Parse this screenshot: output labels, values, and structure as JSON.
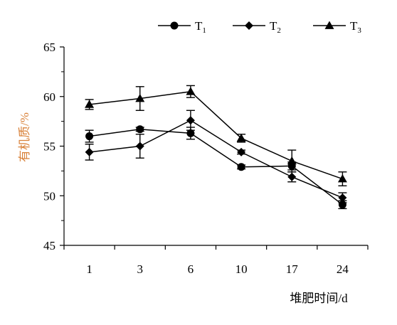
{
  "chart_data": {
    "type": "line",
    "xlabel": "堆肥时间/d",
    "ylabel": "有机质/%",
    "categories": [
      "1",
      "3",
      "6",
      "10",
      "17",
      "24"
    ],
    "ylim": [
      45,
      65
    ],
    "yticks": [
      "45",
      "50",
      "55",
      "60",
      "65"
    ],
    "legend_position": "top-right",
    "grid": false,
    "series": [
      {
        "name": "T",
        "subscript": "1",
        "marker": "circle",
        "values": [
          56.0,
          56.7,
          56.3,
          52.9,
          53.0,
          49.1
        ],
        "errors": [
          0.6,
          0.2,
          0.6,
          0.2,
          0.4,
          0.4
        ]
      },
      {
        "name": "T",
        "subscript": "2",
        "marker": "diamond",
        "values": [
          54.4,
          55.0,
          57.6,
          54.4,
          51.9,
          49.8
        ],
        "errors": [
          0.8,
          1.2,
          1.0,
          0.2,
          0.5,
          0.5
        ]
      },
      {
        "name": "T",
        "subscript": "3",
        "marker": "triangle",
        "values": [
          59.2,
          59.8,
          60.5,
          55.8,
          53.5,
          51.7
        ],
        "errors": [
          0.5,
          1.2,
          0.6,
          0.4,
          1.1,
          0.7
        ]
      }
    ]
  },
  "colors": {
    "line": "#000000",
    "ylabel": "#d9823a"
  }
}
